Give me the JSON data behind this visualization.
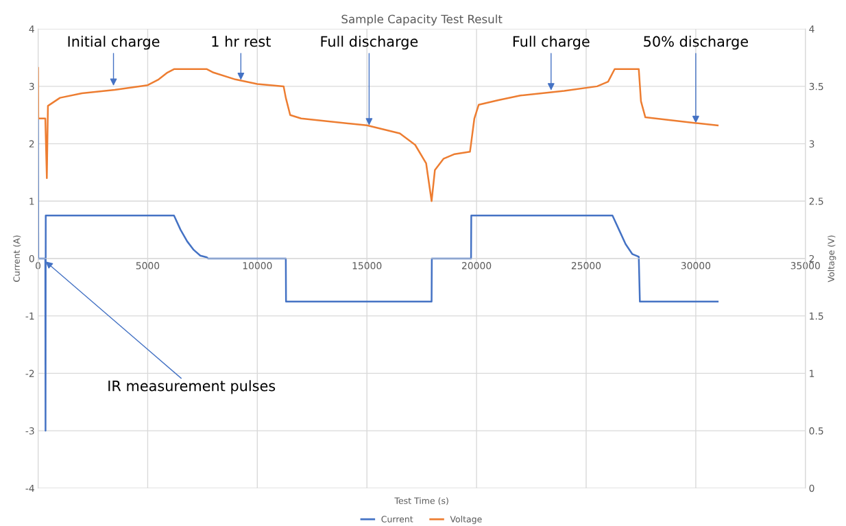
{
  "chart_data": {
    "type": "line",
    "title": "Sample Capacity Test Result",
    "xlabel": "Test Time (s)",
    "ylabel": "Current (A)",
    "y2label": "Voltage (V)",
    "xlim": [
      0,
      35000
    ],
    "xticks": [
      0,
      5000,
      10000,
      15000,
      20000,
      25000,
      30000,
      35000
    ],
    "ylim": [
      -4,
      4
    ],
    "yticks": [
      -4,
      -3,
      -2,
      -1,
      0,
      1,
      2,
      3,
      4
    ],
    "y2lim": [
      0,
      4
    ],
    "y2ticks": [
      0,
      0.5,
      1,
      1.5,
      2,
      2.5,
      3,
      3.5,
      4
    ],
    "grid": true,
    "legend": "bottom",
    "series": [
      {
        "name": "Current",
        "color": "#4472c4",
        "x": [
          0,
          10,
          330,
          340,
          350,
          6200,
          6500,
          6800,
          7100,
          7400,
          7700,
          7750,
          11300,
          11310,
          17950,
          17960,
          19750,
          19760,
          26200,
          26500,
          26800,
          27100,
          27400,
          27450,
          31000
        ],
        "values": [
          2.45,
          0,
          0,
          -3,
          0.75,
          0.75,
          0.5,
          0.3,
          0.15,
          0.05,
          0.02,
          0,
          0,
          -0.75,
          -0.75,
          0,
          0,
          0.75,
          0.75,
          0.5,
          0.25,
          0.08,
          0.03,
          -0.75,
          -0.75
        ]
      },
      {
        "name": "Voltage",
        "color": "#ed7d31",
        "axis": "y2",
        "x": [
          0,
          10,
          330,
          400,
          450,
          1000,
          2000,
          3500,
          5000,
          5500,
          5900,
          6200,
          7700,
          8000,
          9000,
          10000,
          11200,
          11300,
          11500,
          12000,
          15000,
          16500,
          17200,
          17700,
          17950,
          18100,
          18500,
          19000,
          19700,
          19750,
          19900,
          20100,
          21000,
          22000,
          24000,
          25500,
          26000,
          26300,
          27400,
          27500,
          27700,
          30000,
          31000
        ],
        "values": [
          3.66,
          3.22,
          3.22,
          2.7,
          3.33,
          3.4,
          3.44,
          3.47,
          3.51,
          3.56,
          3.62,
          3.65,
          3.65,
          3.62,
          3.56,
          3.52,
          3.5,
          3.4,
          3.25,
          3.22,
          3.16,
          3.09,
          2.99,
          2.83,
          2.5,
          2.77,
          2.87,
          2.91,
          2.93,
          3.0,
          3.22,
          3.34,
          3.38,
          3.42,
          3.46,
          3.5,
          3.54,
          3.65,
          3.65,
          3.37,
          3.23,
          3.18,
          3.16
        ]
      }
    ],
    "annotations": [
      {
        "text": "Initial charge",
        "x": 3440,
        "y": 3.01
      },
      {
        "text": "1 hr rest",
        "x": 9250,
        "y": 3.11
      },
      {
        "text": "Full discharge",
        "x": 15100,
        "y": 2.32
      },
      {
        "text": "Full charge",
        "x": 23400,
        "y": 2.93
      },
      {
        "text": "50% discharge",
        "x": 30000,
        "y": 2.36
      },
      {
        "text": "IR measurement pulses",
        "x": 340,
        "y": -0.05
      }
    ]
  }
}
